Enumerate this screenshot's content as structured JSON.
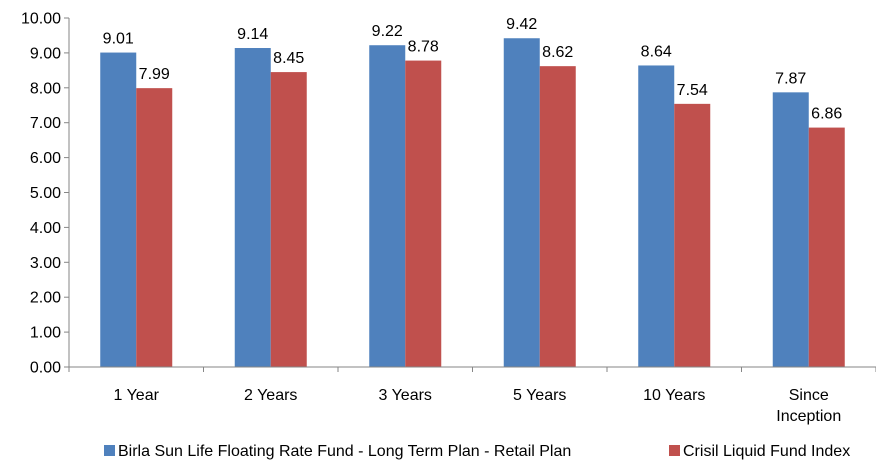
{
  "chart_data": {
    "type": "bar",
    "categories": [
      [
        "1 Year"
      ],
      [
        "2 Years"
      ],
      [
        "3 Years"
      ],
      [
        "5 Years"
      ],
      [
        "10 Years"
      ],
      [
        "Since",
        "Inception"
      ]
    ],
    "series": [
      {
        "name": "Birla Sun Life Floating Rate Fund - Long Term Plan - Retail Plan",
        "color": "#4f81bd",
        "values": [
          9.01,
          9.14,
          9.22,
          9.42,
          8.64,
          7.87
        ]
      },
      {
        "name": "Crisil Liquid Fund Index",
        "color": "#c0504d",
        "values": [
          7.99,
          8.45,
          8.78,
          8.62,
          7.54,
          6.86
        ]
      }
    ],
    "ylim": [
      0,
      10
    ],
    "ytick_step": 1,
    "ytick_decimals": 2,
    "value_decimals": 2,
    "grid": false,
    "legend_position": "bottom"
  }
}
